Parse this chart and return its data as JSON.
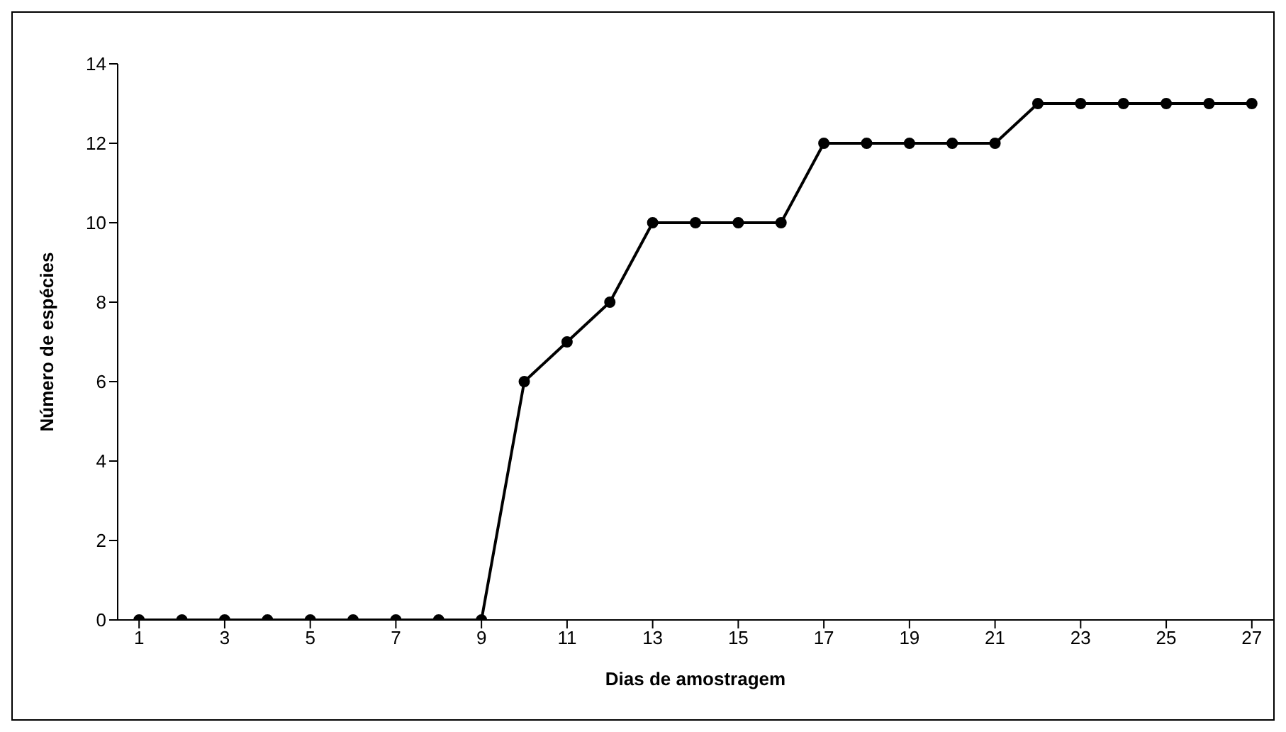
{
  "chart_data": {
    "type": "line",
    "xlabel": "Dias de amostragem",
    "ylabel": "Número de espécies",
    "x": [
      1,
      2,
      3,
      4,
      5,
      6,
      7,
      8,
      9,
      10,
      11,
      12,
      13,
      14,
      15,
      16,
      17,
      18,
      19,
      20,
      21,
      22,
      23,
      24,
      25,
      26,
      27
    ],
    "series": [
      {
        "color": "#000000",
        "values": [
          0,
          0,
          0,
          0,
          0,
          0,
          0,
          0,
          0,
          6,
          7,
          8,
          10,
          10,
          10,
          10,
          12,
          12,
          12,
          12,
          12,
          13,
          13,
          13,
          13,
          13,
          13
        ]
      }
    ],
    "xlim": [
      0.5,
      27.5
    ],
    "xticks": [
      1,
      3,
      5,
      7,
      9,
      11,
      13,
      15,
      17,
      19,
      21,
      23,
      25,
      27
    ],
    "ylim": [
      0,
      14
    ],
    "yticks": [
      0,
      2,
      4,
      6,
      8,
      10,
      12,
      14
    ],
    "grid": false,
    "legend": false,
    "marker": "circle",
    "line_style": "solid"
  }
}
